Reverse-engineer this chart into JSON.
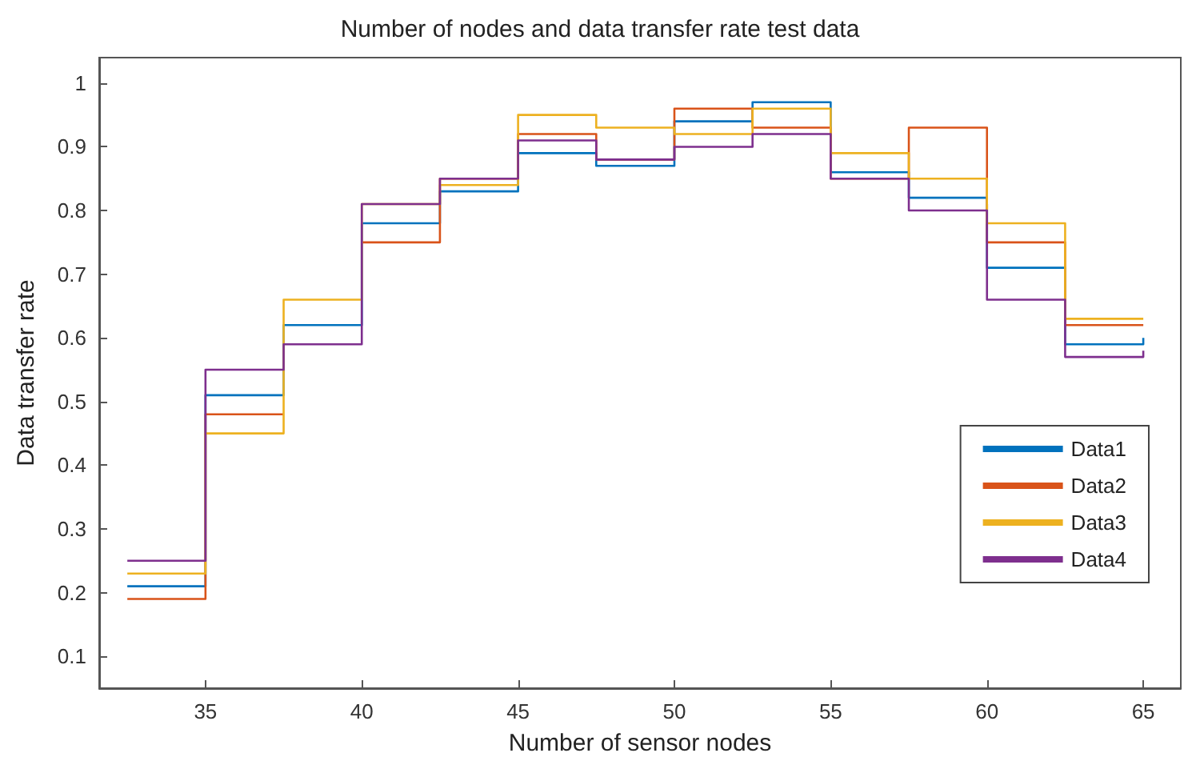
{
  "chart_data": {
    "type": "step",
    "title": "Number of nodes and data transfer rate test data",
    "xlabel": "Number of sensor nodes",
    "ylabel": "Data transfer rate",
    "x": [
      32.5,
      35,
      37.5,
      40,
      42.5,
      45,
      47.5,
      50,
      52.5,
      55,
      57.5,
      60,
      62.5,
      65
    ],
    "series": [
      {
        "name": "Data1",
        "color": "#0072bd",
        "values": [
          0.21,
          0.51,
          0.62,
          0.78,
          0.83,
          0.89,
          0.87,
          0.94,
          0.97,
          0.86,
          0.82,
          0.71,
          0.59,
          0.6
        ]
      },
      {
        "name": "Data2",
        "color": "#d95319",
        "values": [
          0.19,
          0.48,
          null,
          0.75,
          0.85,
          0.92,
          0.88,
          0.96,
          0.93,
          0.85,
          0.93,
          0.75,
          0.62,
          0.62
        ]
      },
      {
        "name": "Data3",
        "color": "#edb120",
        "values": [
          0.23,
          0.45,
          0.66,
          0.81,
          0.84,
          0.95,
          0.93,
          0.92,
          0.96,
          0.89,
          0.85,
          0.78,
          0.63,
          0.63
        ]
      },
      {
        "name": "Data4",
        "color": "#7e2f8e",
        "values": [
          0.25,
          0.55,
          0.59,
          0.81,
          0.85,
          0.91,
          0.88,
          0.9,
          0.92,
          0.85,
          0.8,
          0.66,
          0.57,
          0.58
        ]
      }
    ],
    "xlim": [
      31.6,
      66.2
    ],
    "xticks": [
      35,
      40,
      45,
      50,
      55,
      60,
      65
    ],
    "ylim": [
      0.05,
      1.04
    ],
    "yticks": [
      0.1,
      0.2,
      0.3,
      0.4,
      0.5,
      0.6,
      0.7,
      0.8,
      0.9,
      1
    ],
    "grid": false,
    "legend": "right",
    "marker": "none",
    "line_style": "solid"
  }
}
